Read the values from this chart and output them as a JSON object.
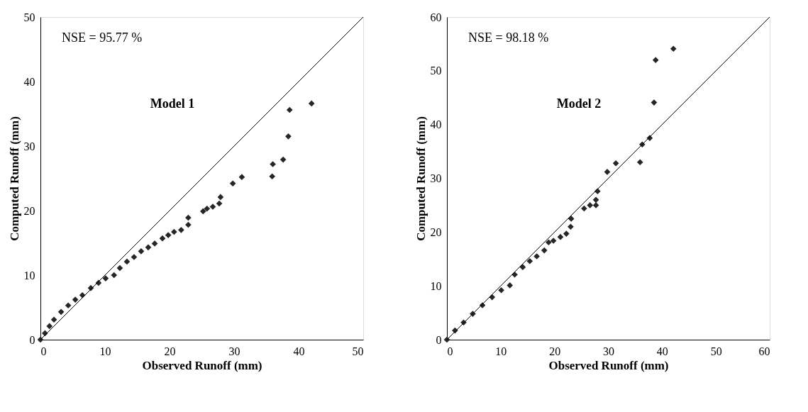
{
  "chart_data": [
    {
      "type": "scatter",
      "xlabel": "Observed Runoff (mm)",
      "ylabel": "Computed Runoff (mm)",
      "annotations": [
        "NSE = 95.77 %",
        "Model 1"
      ],
      "xlim": [
        0,
        50
      ],
      "ylim": [
        0,
        50
      ],
      "xticks": [
        0,
        10,
        20,
        30,
        40,
        50
      ],
      "yticks": [
        0,
        10,
        20,
        30,
        40,
        50
      ],
      "grid": false,
      "series": [
        {
          "marker": "diamond",
          "color": "#262626",
          "x": [
            0,
            0.7,
            1.4,
            2.1,
            3.2,
            4.3,
            5.4,
            6.5,
            7.8,
            9.0,
            10.1,
            11.4,
            12.3,
            13.4,
            14.5,
            15.6,
            16.7,
            17.7,
            18.9,
            19.8,
            20.7,
            21.8,
            22.9,
            22.9,
            25.2,
            25.8,
            26.7,
            27.7,
            27.9,
            29.8,
            31.2,
            35.9,
            36.0,
            37.6,
            38.4,
            38.6,
            42.0
          ],
          "values": [
            0,
            1.0,
            2.1,
            3.1,
            4.3,
            5.3,
            6.2,
            6.9,
            8.0,
            8.8,
            9.5,
            10.0,
            11.1,
            12.1,
            12.8,
            13.7,
            14.3,
            14.9,
            15.7,
            16.2,
            16.7,
            17.0,
            17.8,
            18.9,
            19.9,
            20.3,
            20.6,
            21.1,
            22.1,
            24.2,
            25.2,
            25.3,
            27.2,
            27.9,
            31.5,
            35.6,
            36.6
          ]
        },
        {
          "type": "line",
          "line_style": "solid",
          "color": "#000000",
          "x": [
            0,
            50
          ],
          "values": [
            0,
            50
          ]
        }
      ]
    },
    {
      "type": "scatter",
      "xlabel": "Observed Runoff (mm)",
      "ylabel": "Computed Runoff (mm)",
      "annotations": [
        "NSE = 98.18 %",
        "Model 2"
      ],
      "xlim": [
        0,
        60
      ],
      "ylim": [
        0,
        60
      ],
      "xticks": [
        0,
        10,
        20,
        30,
        40,
        50,
        60
      ],
      "yticks": [
        0,
        10,
        20,
        30,
        40,
        50,
        60
      ],
      "grid": false,
      "series": [
        {
          "marker": "diamond",
          "color": "#262626",
          "x": [
            0,
            1.5,
            3.1,
            4.8,
            6.6,
            8.4,
            10.1,
            11.7,
            12.6,
            14.1,
            15.4,
            16.7,
            18.1,
            18.9,
            19.8,
            21.1,
            22.2,
            23.0,
            23.1,
            25.5,
            26.6,
            27.7,
            27.7,
            28.0,
            29.8,
            31.4,
            35.9,
            36.3,
            37.7,
            38.5,
            38.8,
            42.1
          ],
          "values": [
            0,
            1.7,
            3.2,
            4.8,
            6.4,
            7.9,
            9.2,
            10.1,
            12.1,
            13.5,
            14.6,
            15.5,
            16.6,
            18.1,
            18.4,
            19.1,
            19.7,
            21.0,
            22.5,
            24.4,
            25.0,
            25.0,
            26.0,
            27.6,
            31.2,
            32.8,
            33.0,
            36.3,
            37.5,
            44.1,
            52.0,
            54.1
          ]
        },
        {
          "type": "line",
          "line_style": "solid",
          "color": "#000000",
          "x": [
            0,
            60
          ],
          "values": [
            0,
            60
          ]
        }
      ]
    }
  ]
}
